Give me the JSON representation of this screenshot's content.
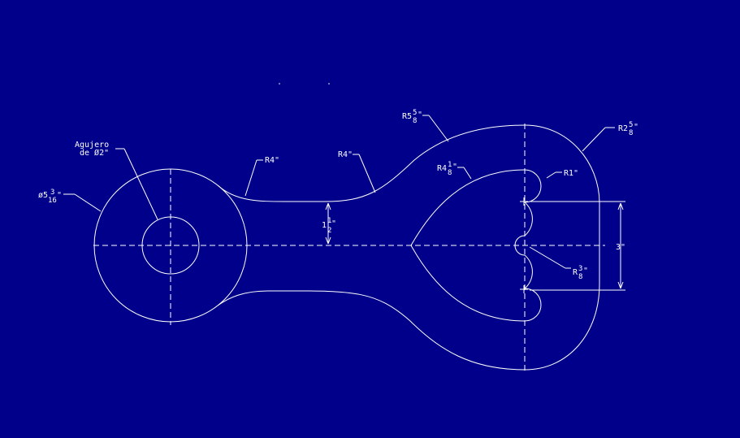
{
  "colors": {
    "background": "#00008b",
    "lines": "#ffffff"
  },
  "labels": {
    "hole_title_line1": "Agujero",
    "hole_title_line2": "de Ø2\"",
    "outer_dia_prefix": "ø5",
    "outer_dia_num": "3",
    "outer_dia_den": "16",
    "outer_dia_unit": "\"",
    "r4_left": "R4\"",
    "r4_mid": "R4\"",
    "r5_prefix": "R5",
    "r5_num": "5",
    "r5_den": "8",
    "r5_unit": "\"",
    "r2_prefix": "R2",
    "r2_num": "5",
    "r2_den": "8",
    "r2_unit": "\"",
    "r4_inner_prefix": "R4",
    "r4_inner_num": "1",
    "r4_inner_den": "8",
    "r4_inner_unit": "\"",
    "r1": "R1\"",
    "r3_prefix": "R",
    "r3_num": "3",
    "r3_den": "8",
    "r3_unit": "\"",
    "width_prefix": "1",
    "width_num": "1",
    "width_den": "2",
    "width_unit": "\"",
    "dim_3": "3\""
  }
}
